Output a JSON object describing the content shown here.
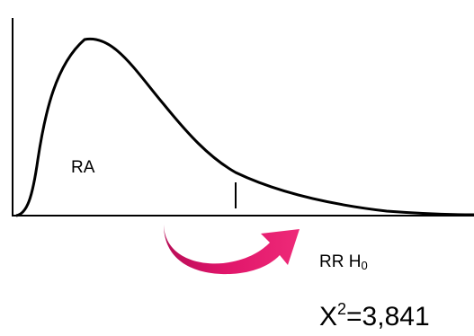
{
  "colors": {
    "axis": "#000000",
    "curve": "#000000",
    "arrow": "#e0156a",
    "arrow_dark": "#a30c4c",
    "background": "#ffffff"
  },
  "labels": {
    "acceptance_region": "RA",
    "rejection_region": "RR H",
    "rejection_region_sub": "0",
    "statistic_symbol": "X",
    "statistic_superscript": "2",
    "critical_value_text": "=3,841"
  },
  "chart_data": {
    "type": "line",
    "title": "",
    "xlabel": "",
    "ylabel": "",
    "series": [
      {
        "values": []
      }
    ],
    "annotations": [
      "RA",
      "RR H0",
      "X2=3,841"
    ]
  }
}
